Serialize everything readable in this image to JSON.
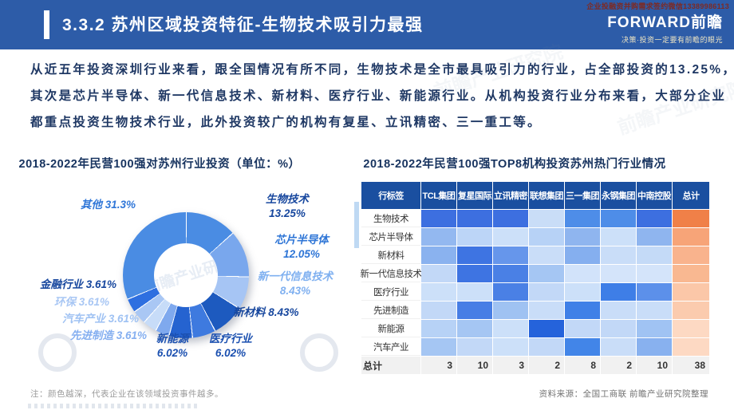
{
  "header": {
    "corner_note": "企业投融资并购需求签约微信13389986113",
    "title": "3.3.2 苏州区域投资特征-生物技术吸引力最强",
    "logo": "FORWARD前瞻",
    "tagline": "决策·投资一定要有前瞻的眼光"
  },
  "paragraph": {
    "lines": [
      "从近五年投资深圳行业来看，跟全国情况有所不同，生物技术是全市最具吸引力的行业，占全部投资的13.25%，",
      "其次是芯片半导体、新一代信息技术、新材料、医疗行业、新能源行业。从机构投资行业分布来看，大部分企业",
      "都重点投资生物技术行业，此外投资较广的机构有复星、立讯精密、三一重工等。"
    ]
  },
  "watermark_text": "前瞻产业研究院",
  "chart_data": [
    {
      "type": "pie",
      "donut": true,
      "title": "2018-2022年民营100强对苏州行业投资（单位：%）",
      "labels": [
        "生物技术",
        "芯片半导体",
        "新一代信息技术",
        "新材料",
        "医疗行业",
        "新能源",
        "先进制造",
        "汽车产业",
        "环保",
        "金融行业",
        "其他"
      ],
      "values": [
        13.25,
        12.05,
        8.43,
        8.43,
        6.02,
        6.02,
        3.61,
        3.61,
        3.61,
        3.61,
        31.3
      ],
      "colors": [
        "#4A8CE3",
        "#79A7ED",
        "#A6C5F4",
        "#1D5ABF",
        "#3E7ADF",
        "#2563D0",
        "#7FA9EE",
        "#C7DCF8",
        "#A9C7F4",
        "#2E6FE0",
        "#4A8CE3"
      ],
      "label_colors": [
        "#17479E",
        "#2E75D6",
        "#7FB0F0",
        "#17479E",
        "#1B50B0",
        "#1B50B0",
        "#85AFF0",
        "#9FC2F3",
        "#A9C7F4",
        "#17479E",
        "#3077D8"
      ]
    },
    {
      "type": "heatmap",
      "title": "2018-2022年民营100强TOP8机构投资苏州热门行业情况",
      "corner_label": "行标签",
      "total_label": "总计",
      "columns": [
        "TCL集团",
        "复星国际",
        "立讯精密",
        "联想集团",
        "三一集团",
        "永钢集团",
        "中南控股"
      ],
      "rows": [
        "生物技术",
        "芯片半导体",
        "新材料",
        "新一代信息技术",
        "医疗行业",
        "先进制造",
        "新能源",
        "汽车产业"
      ],
      "cell_colors": [
        [
          "#3D6FE0",
          "#3D6FE0",
          "#3D6FE0",
          "#C9DDF7",
          "#4E8DE8",
          "#4E8DE8",
          "#3D6FE0"
        ],
        [
          "#93B8F0",
          "#BCD5F7",
          "#CCE0F9",
          "#B7D2F6",
          "#8FB5EF",
          "#CCE0F9",
          "#8FB5EF"
        ],
        [
          "#8AB2EF",
          "#3E74E2",
          "#6696EB",
          "#C9DDF8",
          "#85AFEF",
          "#C9DDF8",
          "#C4DAF7"
        ],
        [
          "#C2D8F7",
          "#3E74E2",
          "#4A80E5",
          "#A5C6F3",
          "#D2E3FA",
          "#D4E4FA",
          "#D4E4FA"
        ],
        [
          "#CCE0F9",
          "#CCE0F9",
          "#4A80E5",
          "#C2D8F7",
          "#CCE0F9",
          "#3E7EE7",
          "#5C90EA"
        ],
        [
          "#C2D8F7",
          "#477EE5",
          "#9FC2F2",
          "#C9DDF8",
          "#4080E7",
          "#C9DDF8",
          "#C9DDF8"
        ],
        [
          "#B7D2F6",
          "#A5C6F3",
          "#CCE0F9",
          "#2563DB",
          "#C2D8F7",
          "#C2D8F7",
          "#A0C3F3"
        ],
        [
          "#A5C6F3",
          "#C2D8F7",
          "#CCE0F9",
          "#C2D8F7",
          "#4285E8",
          "#C9DDF8",
          "#88B1EF"
        ]
      ],
      "row_total_colors": [
        "#F08048",
        "#F7A478",
        "#F9B38D",
        "#F9B891",
        "#FBC7A8",
        "#FBCBAE",
        "#FDD9C3",
        "#FDD9C3"
      ],
      "column_totals": [
        3,
        10,
        3,
        2,
        8,
        2,
        10
      ],
      "grand_total": 38
    }
  ],
  "footnotes": {
    "left": "注：颜色越深，代表企业在该领域投资事件越多。",
    "right": "资料来源：全国工商联  前瞻产业研究院整理"
  }
}
